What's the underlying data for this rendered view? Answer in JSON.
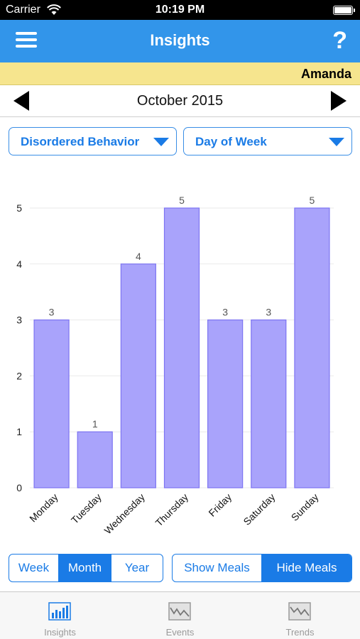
{
  "status_bar": {
    "carrier": "Carrier",
    "time": "10:19 PM"
  },
  "navbar": {
    "title": "Insights",
    "help_label": "?"
  },
  "user": {
    "name": "Amanda"
  },
  "period": {
    "label": "October 2015"
  },
  "filters": {
    "metric": "Disordered Behavior",
    "grouping": "Day of Week"
  },
  "colors": {
    "accent": "#1a7be6",
    "navbar": "#3295ea",
    "banner": "#f6e58e",
    "bar_fill": "#a9a3fb",
    "bar_stroke": "#7d74f2"
  },
  "chart_data": {
    "type": "bar",
    "categories": [
      "Monday",
      "Tuesday",
      "Wednesday",
      "Thursday",
      "Friday",
      "Saturday",
      "Sunday"
    ],
    "values": [
      3,
      1,
      4,
      5,
      3,
      3,
      5
    ],
    "y_ticks": [
      "0",
      "1",
      "2",
      "3",
      "4",
      "5"
    ],
    "ylim": [
      0,
      5
    ],
    "xlabel": "",
    "ylabel": "",
    "data_labels": true,
    "grid": true
  },
  "period_options": {
    "items": [
      "Week",
      "Month",
      "Year"
    ],
    "selected": "Month"
  },
  "meal_options": {
    "items": [
      "Show Meals",
      "Hide Meals"
    ],
    "selected": "Hide Meals"
  },
  "tabs": [
    {
      "label": "Insights",
      "icon": "bar-chart-icon",
      "active": true
    },
    {
      "label": "Events",
      "icon": "events-chart-icon",
      "active": false
    },
    {
      "label": "Trends",
      "icon": "trends-chart-icon",
      "active": false
    }
  ]
}
